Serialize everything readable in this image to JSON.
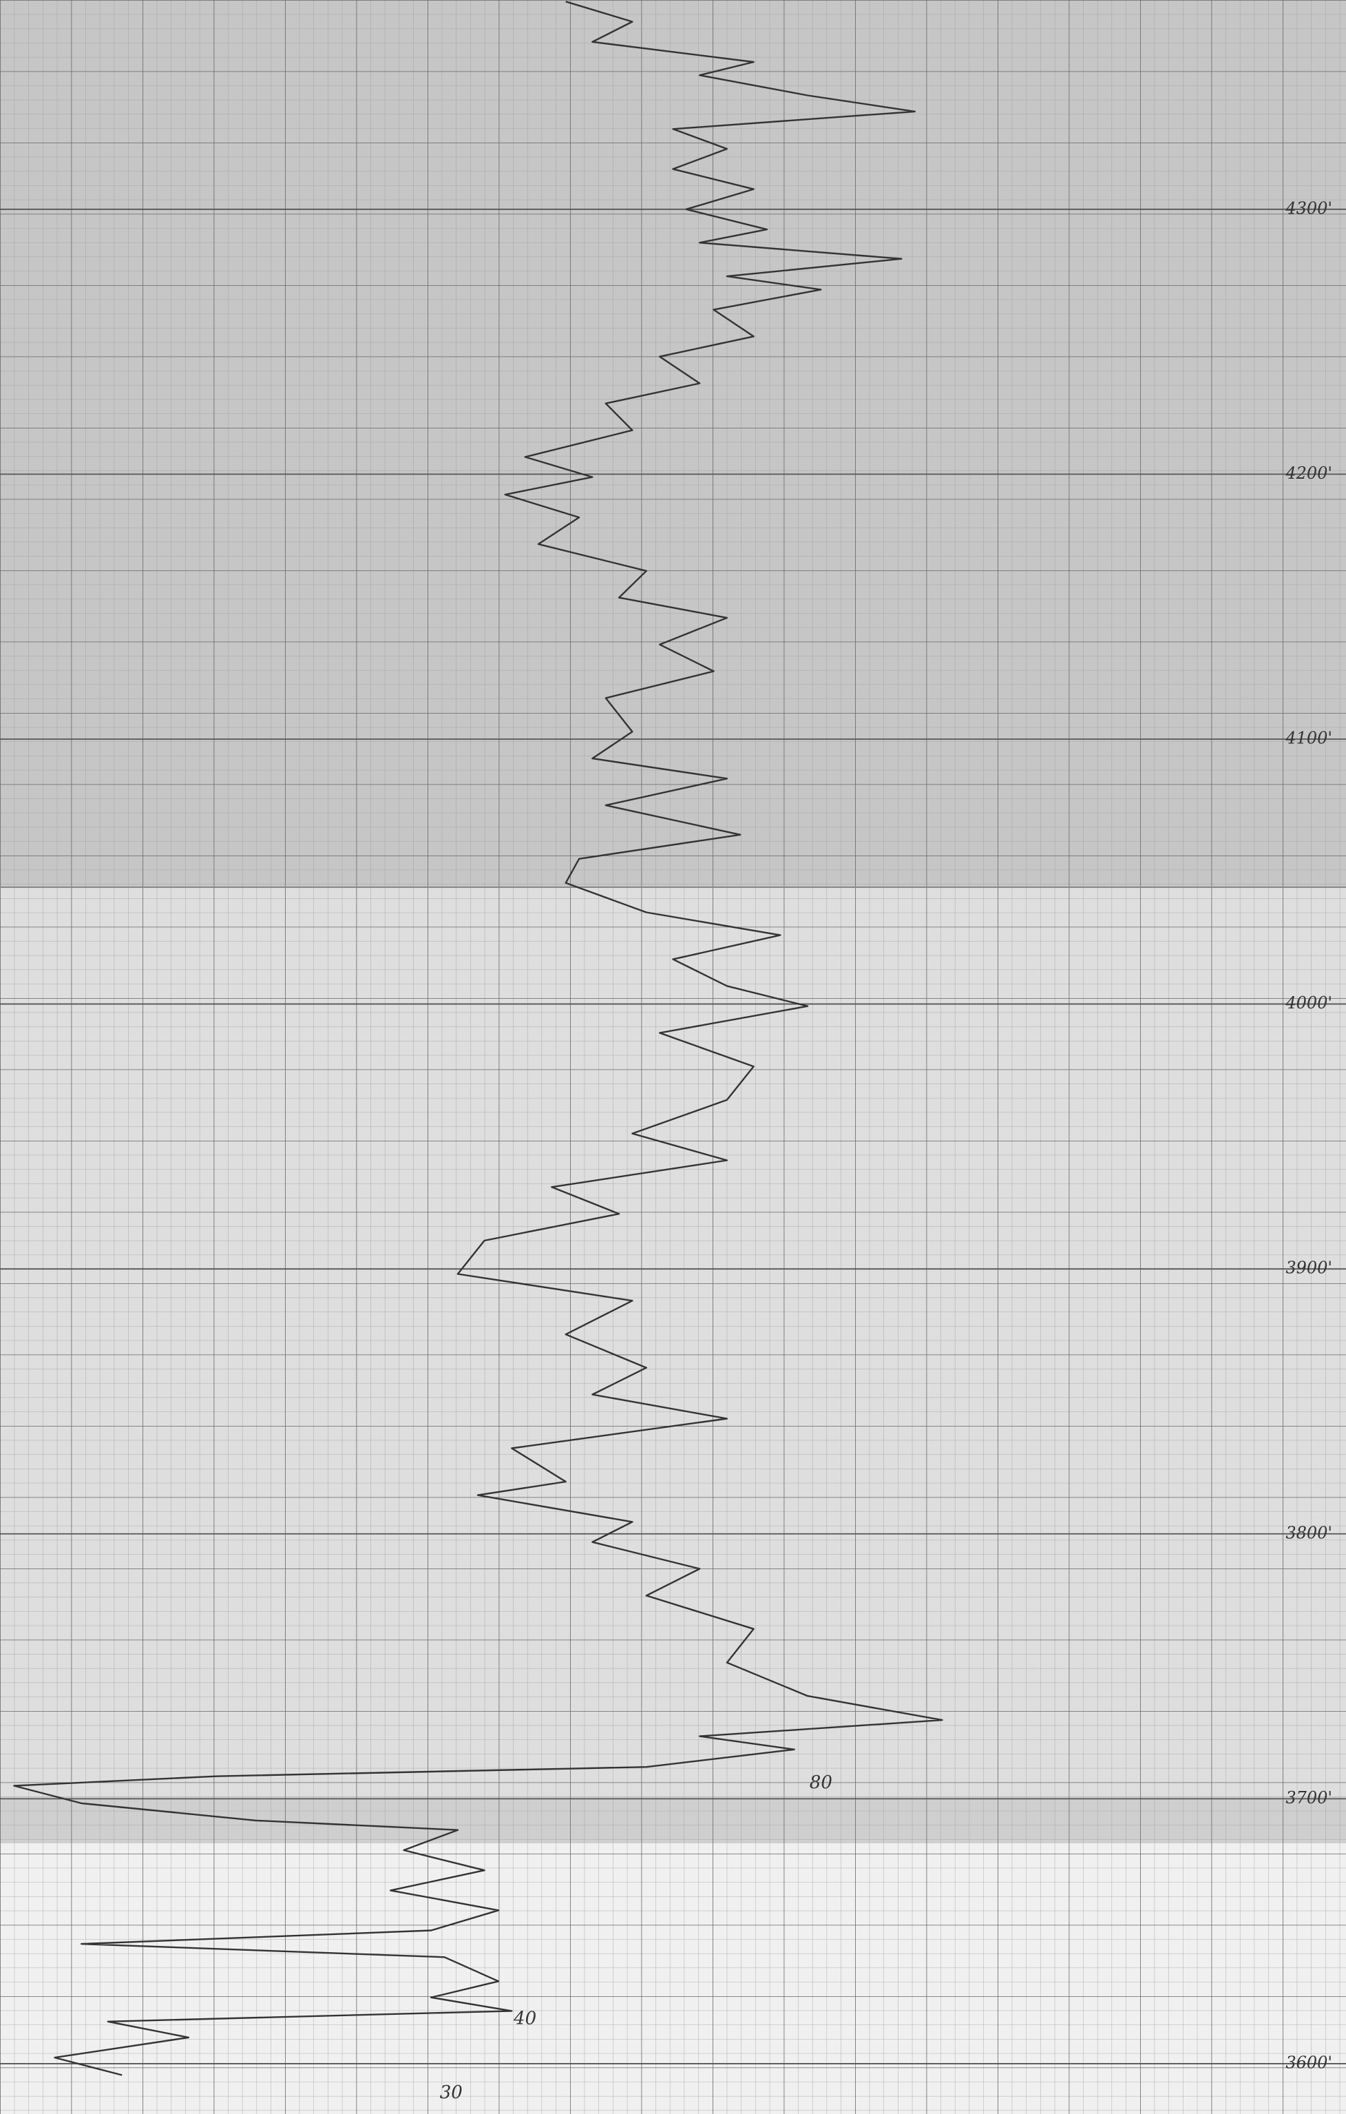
{
  "chart_data": {
    "type": "line",
    "orientation": "vertical",
    "color": "#333333",
    "grid": true,
    "xlim": [
      -31,
      151
    ],
    "ylim": [
      3581,
      4379
    ],
    "yticks": [
      {
        "value": 4300,
        "label": "4300'"
      },
      {
        "value": 4200,
        "label": "4200'"
      },
      {
        "value": 4100,
        "label": "4100'"
      },
      {
        "value": 4000,
        "label": "4000'"
      },
      {
        "value": 3900,
        "label": "3900'"
      },
      {
        "value": 3800,
        "label": "3800'"
      },
      {
        "value": 3700,
        "label": "3700'"
      },
      {
        "value": 3600,
        "label": "3600'"
      }
    ],
    "annotations": [
      {
        "text": "80",
        "value": 80,
        "depth": 3711
      },
      {
        "text": "40",
        "value": 40,
        "depth": 3622
      },
      {
        "text": "30",
        "value": 30,
        "depth": 3594
      }
    ],
    "x": [
      4378.4,
      4370.8,
      4363.2,
      4355.6,
      4350.6,
      4343.0,
      4336.9,
      4330.3,
      4322.8,
      4315.2,
      4307.6,
      4300.0,
      4292.4,
      4287.4,
      4281.3,
      4274.7,
      4269.7,
      4262.1,
      4252.0,
      4244.4,
      4234.3,
      4226.7,
      4216.6,
      4206.5,
      4198.9,
      4192.3,
      4183.7,
      4173.6,
      4163.5,
      4153.4,
      4145.8,
      4135.7,
      4125.6,
      4115.5,
      4102.8,
      4092.7,
      4085.1,
      4075.0,
      4063.9,
      4054.8,
      4045.7,
      4034.6,
      4026.0,
      4016.9,
      4006.8,
      3999.2,
      3989.1,
      3976.4,
      3963.8,
      3951.1,
      3941.0,
      3930.9,
      3920.8,
      3910.7,
      3898.1,
      3888.0,
      3875.3,
      3862.7,
      3852.6,
      3843.5,
      3832.3,
      3819.7,
      3814.6,
      3804.5,
      3796.9,
      3786.8,
      3776.7,
      3764.1,
      3751.4,
      3738.8,
      3729.7,
      3723.6,
      3718.6,
      3712.0,
      3708.5,
      3704.9,
      3698.3,
      3691.8,
      3688.2,
      3680.6,
      3673.0,
      3665.4,
      3657.9,
      3650.3,
      3645.2,
      3640.2,
      3631.1,
      3625.0,
      3619.9,
      3615.9,
      3609.9,
      3602.3,
      3595.7
    ],
    "values": [
      45.5,
      54.5,
      49.1,
      70.9,
      63.6,
      78.2,
      92.7,
      60.0,
      67.3,
      60.0,
      70.9,
      61.8,
      72.7,
      63.6,
      90.9,
      67.3,
      80.0,
      65.5,
      70.9,
      58.2,
      63.6,
      50.9,
      54.5,
      40.0,
      49.1,
      37.3,
      47.3,
      41.8,
      56.4,
      52.7,
      67.3,
      58.2,
      65.5,
      50.9,
      54.5,
      49.1,
      67.3,
      50.9,
      69.1,
      47.3,
      45.5,
      56.4,
      74.5,
      60.0,
      67.3,
      78.2,
      58.2,
      70.9,
      67.3,
      54.5,
      67.3,
      43.6,
      52.7,
      34.5,
      30.9,
      54.5,
      45.5,
      56.4,
      49.1,
      67.3,
      38.2,
      45.5,
      33.6,
      54.5,
      49.1,
      63.6,
      56.4,
      70.9,
      67.3,
      78.2,
      96.4,
      63.6,
      76.4,
      56.4,
      -1.8,
      -29.1,
      -20.0,
      3.6,
      30.9,
      23.6,
      34.5,
      21.8,
      36.4,
      27.3,
      -20.0,
      29.1,
      36.4,
      27.3,
      38.2,
      -16.4,
      -5.5,
      -23.6,
      -14.5
    ]
  }
}
